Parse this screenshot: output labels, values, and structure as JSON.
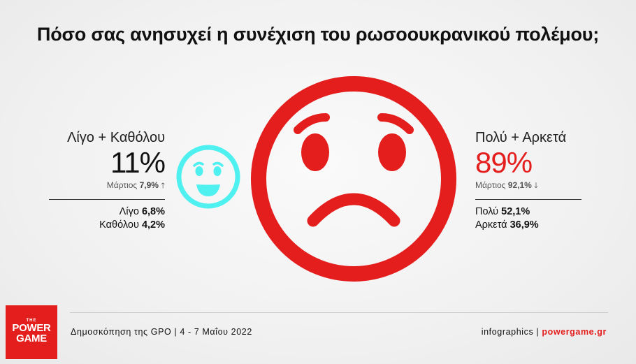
{
  "title": "Πόσο σας ανησυχεί η συνέχιση του ρωσοουκρανικού πολέμου;",
  "left": {
    "category": "Λίγο + Καθόλου",
    "percent": "11%",
    "prev_label": "Μάρτιος",
    "prev_value": "7,9%",
    "prev_arrow": "up-arrow-icon",
    "breakdown": [
      {
        "label": "Λίγο",
        "value": "6,8%"
      },
      {
        "label": "Καθόλου",
        "value": "4,2%"
      }
    ],
    "face_icon": "smiling-face-icon",
    "color": "#4ff0f0"
  },
  "right": {
    "category": "Πολύ + Αρκετά",
    "percent": "89%",
    "prev_label": "Μάρτιος",
    "prev_value": "92,1%",
    "prev_arrow": "down-arrow-icon",
    "breakdown": [
      {
        "label": "Πολύ",
        "value": "52,1%"
      },
      {
        "label": "Αρκετά",
        "value": "36,9%"
      }
    ],
    "face_icon": "worried-face-icon",
    "color": "#e41d1d"
  },
  "footer": {
    "source": "Δημοσκόπηση της GPO | 4 - 7 Μαΐου 2022",
    "credit_prefix": "infographics |",
    "credit_site": "powergame.gr"
  },
  "logo": {
    "the": "THE",
    "word1": "POWER",
    "word2": "GAME"
  }
}
